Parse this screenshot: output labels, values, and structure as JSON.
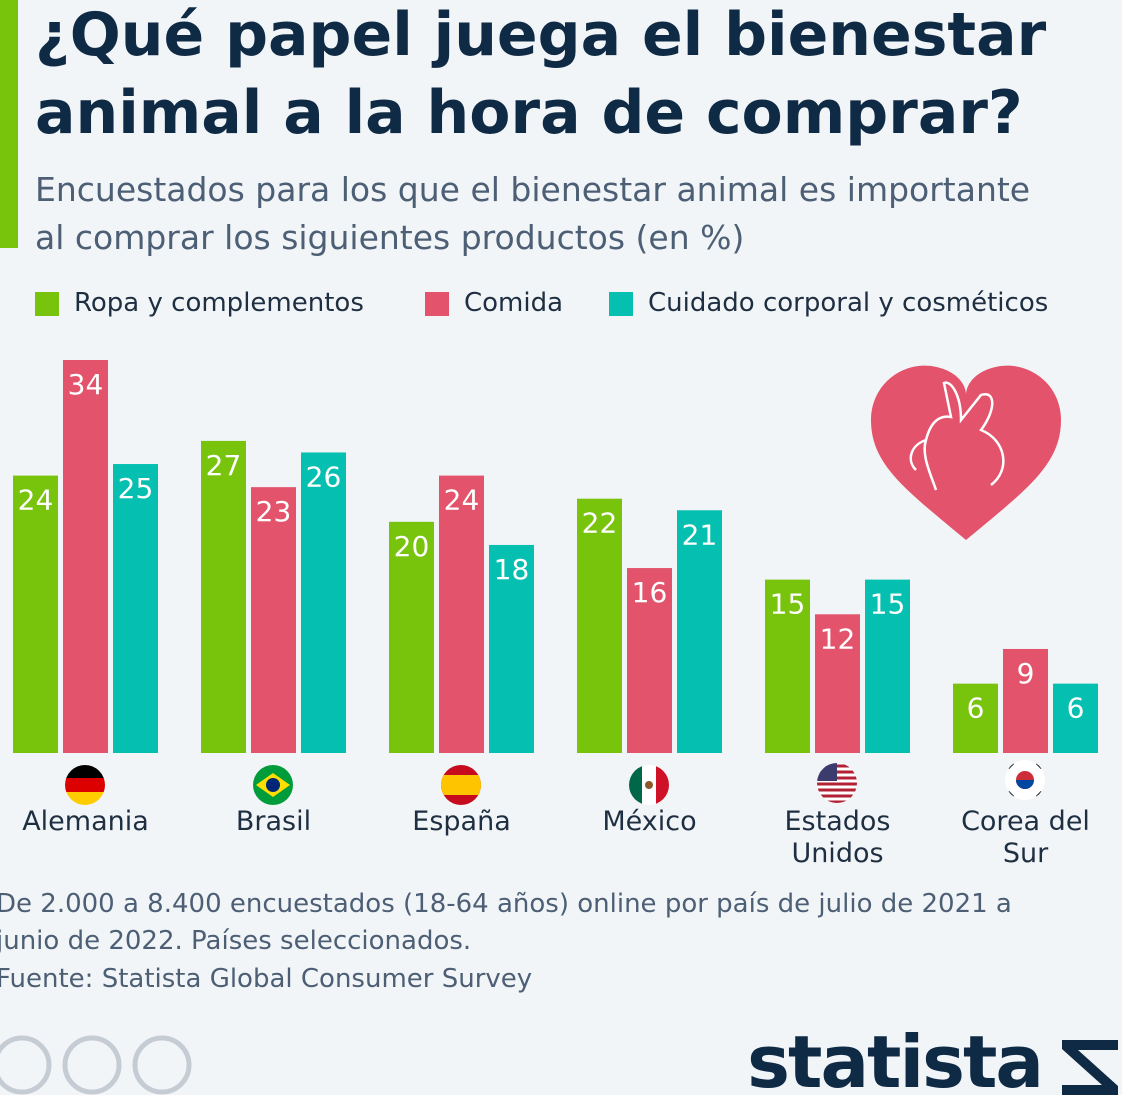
{
  "chart_data": {
    "type": "bar",
    "title": "¿Qué papel juega el bienestar animal a la hora de comprar?",
    "subtitle": "Encuestados para los que el bienestar animal es importante al comprar los siguientes productos (en %)",
    "categories": [
      "Alemania",
      "Brasil",
      "España",
      "México",
      "Estados Unidos",
      "Corea del Sur"
    ],
    "series": [
      {
        "name": "Ropa y complementos",
        "color": "#78c30c",
        "values": [
          24,
          27,
          20,
          22,
          15,
          6
        ]
      },
      {
        "name": "Comida",
        "color": "#e3536b",
        "values": [
          34,
          23,
          24,
          16,
          12,
          9
        ]
      },
      {
        "name": "Cuidado corporal y cosméticos",
        "color": "#05bfb0",
        "values": [
          25,
          26,
          18,
          21,
          15,
          6
        ]
      }
    ],
    "note": "De 2.000 a 8.400 encuestados (18-64 años) online por país de julio de 2021 a junio de 2022. Países seleccionados.",
    "source": "Fuente: Statista Global Consumer Survey",
    "brand": "statista"
  }
}
